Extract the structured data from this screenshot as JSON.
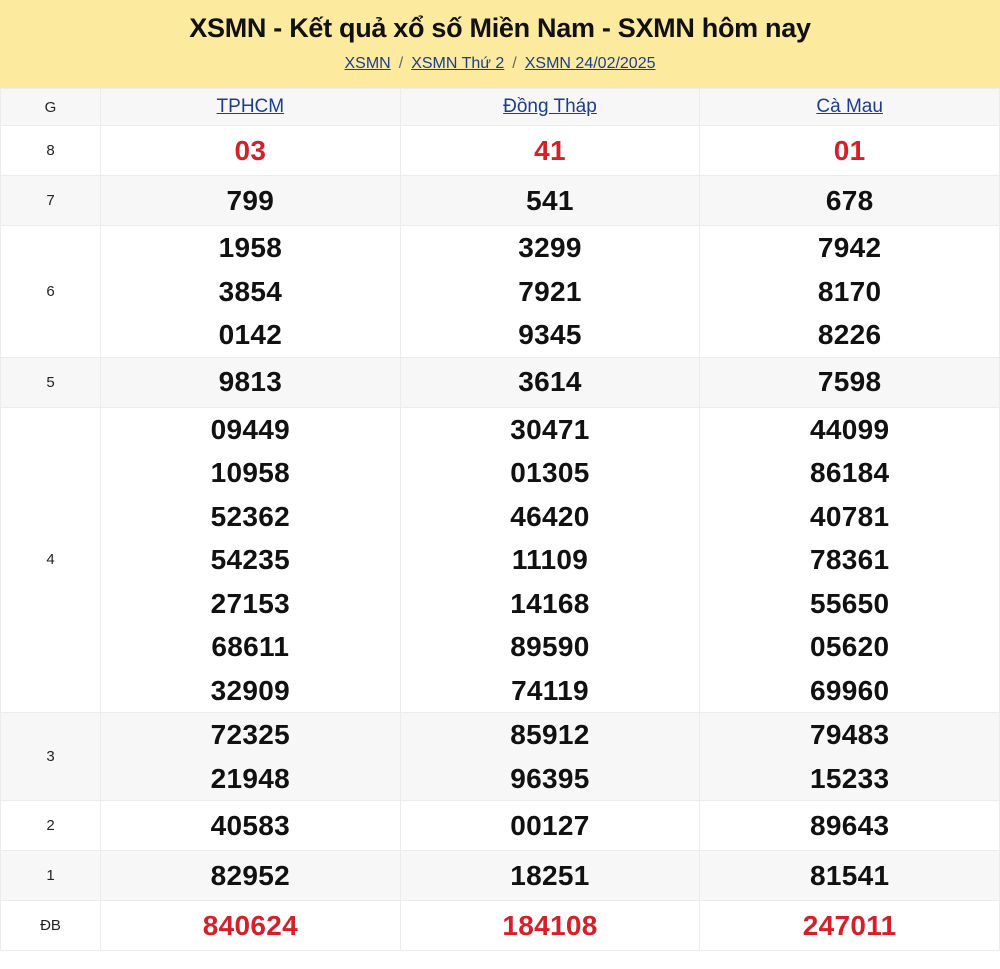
{
  "header": {
    "title": "XSMN - Kết quả xổ số Miền Nam - SXMN hôm nay",
    "breadcrumb": [
      "XSMN",
      "XSMN Thứ 2",
      "XSMN 24/02/2025"
    ],
    "separator": "/"
  },
  "table": {
    "g_header": "G",
    "provinces": [
      "TPHCM",
      "Đồng Tháp",
      "Cà Mau"
    ],
    "rows": [
      {
        "g": "8",
        "red": true,
        "values": [
          [
            "03"
          ],
          [
            "41"
          ],
          [
            "01"
          ]
        ]
      },
      {
        "g": "7",
        "values": [
          [
            "799"
          ],
          [
            "541"
          ],
          [
            "678"
          ]
        ]
      },
      {
        "g": "6",
        "values": [
          [
            "1958",
            "3854",
            "0142"
          ],
          [
            "3299",
            "7921",
            "9345"
          ],
          [
            "7942",
            "8170",
            "8226"
          ]
        ]
      },
      {
        "g": "5",
        "values": [
          [
            "9813"
          ],
          [
            "3614"
          ],
          [
            "7598"
          ]
        ]
      },
      {
        "g": "4",
        "values": [
          [
            "09449",
            "10958",
            "52362",
            "54235",
            "27153",
            "68611",
            "32909"
          ],
          [
            "30471",
            "01305",
            "46420",
            "11109",
            "14168",
            "89590",
            "74119"
          ],
          [
            "44099",
            "86184",
            "40781",
            "78361",
            "55650",
            "05620",
            "69960"
          ]
        ]
      },
      {
        "g": "3",
        "values": [
          [
            "72325",
            "21948"
          ],
          [
            "85912",
            "96395"
          ],
          [
            "79483",
            "15233"
          ]
        ]
      },
      {
        "g": "2",
        "values": [
          [
            "40583"
          ],
          [
            "00127"
          ],
          [
            "89643"
          ]
        ]
      },
      {
        "g": "1",
        "values": [
          [
            "82952"
          ],
          [
            "18251"
          ],
          [
            "81541"
          ]
        ]
      },
      {
        "g": "ĐB",
        "red": true,
        "values": [
          [
            "840624"
          ],
          [
            "184108"
          ],
          [
            "247011"
          ]
        ]
      }
    ]
  },
  "colors": {
    "header_bg": "#fcea9f",
    "link": "#1a3d8f",
    "red": "#d61f26",
    "alt_row": "#f7f7f7"
  }
}
